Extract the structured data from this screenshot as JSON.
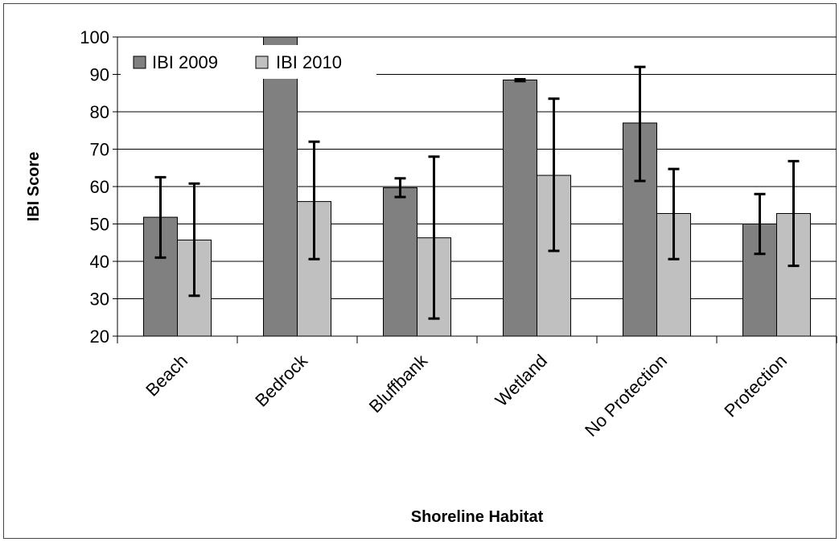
{
  "chart_data": {
    "type": "bar",
    "title": "",
    "xlabel": "Shoreline Habitat",
    "ylabel": "IBI Score",
    "ylim": [
      20,
      100
    ],
    "yticks": [
      20,
      30,
      40,
      50,
      60,
      70,
      80,
      90,
      100
    ],
    "grid": "horizontal",
    "legend_position": "top-left",
    "categories": [
      "Beach",
      "Bedrock",
      "Bluffbank",
      "Wetland",
      "No Protection",
      "Protection"
    ],
    "series": [
      {
        "name": "IBI 2009",
        "color": "#808080",
        "values": [
          51.8,
          100,
          59.7,
          88.5,
          77,
          50
        ],
        "error_low": [
          41,
          null,
          57.2,
          88.2,
          61.5,
          42
        ],
        "error_high": [
          62.5,
          null,
          62.2,
          88.7,
          92,
          58
        ]
      },
      {
        "name": "IBI 2010",
        "color": "#c0c0c0",
        "values": [
          45.7,
          56,
          46.3,
          63,
          52.8,
          52.8
        ],
        "error_low": [
          30.8,
          40.6,
          24.7,
          42.8,
          40.6,
          38.8
        ],
        "error_high": [
          60.8,
          72,
          68,
          83.5,
          64.7,
          66.8
        ]
      }
    ]
  }
}
